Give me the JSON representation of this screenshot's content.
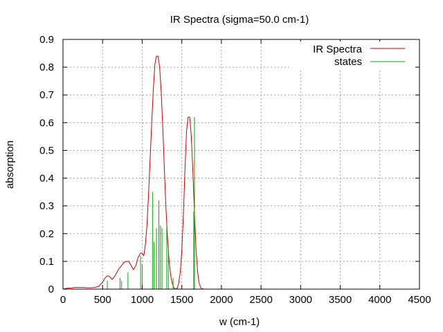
{
  "chart_data": {
    "type": "line",
    "title": "IR Spectra (sigma=50.0 cm-1)",
    "xlabel": "w (cm-1)",
    "ylabel": "absorption",
    "xlim": [
      0,
      4500
    ],
    "ylim": [
      0,
      0.9
    ],
    "x_ticks": [
      0,
      500,
      1000,
      1500,
      2000,
      2500,
      3000,
      3500,
      4000,
      4500
    ],
    "x_tick_labels": [
      "0",
      "500",
      "1000",
      "1500",
      "2000",
      "2500",
      "3000",
      "3500",
      "4000",
      "4500"
    ],
    "y_ticks": [
      0,
      0.1,
      0.2,
      0.3,
      0.4,
      0.5,
      0.6,
      0.7,
      0.8,
      0.9
    ],
    "y_tick_labels": [
      "0",
      "0.1",
      "0.2",
      "0.3",
      "0.4",
      "0.5",
      "0.6",
      "0.7",
      "0.8",
      "0.9"
    ],
    "grid": true,
    "legend_position": "top-right",
    "series": [
      {
        "name": "IR Spectra",
        "style": "line",
        "color": "#cc0000",
        "x": [
          0,
          50,
          100,
          150,
          200,
          250,
          300,
          350,
          400,
          450,
          500,
          530,
          560,
          590,
          620,
          650,
          680,
          710,
          740,
          770,
          800,
          830,
          860,
          890,
          920,
          950,
          980,
          1000,
          1020,
          1040,
          1060,
          1080,
          1100,
          1120,
          1140,
          1160,
          1180,
          1200,
          1220,
          1240,
          1260,
          1280,
          1300,
          1320,
          1340,
          1360,
          1380,
          1400,
          1420,
          1440,
          1460,
          1480,
          1500,
          1520,
          1540,
          1560,
          1580,
          1600,
          1620,
          1640,
          1660,
          1680,
          1700,
          1720,
          1740,
          1760,
          1780,
          1800,
          1820,
          1850,
          1900,
          2000,
          2500,
          3000,
          3500,
          4000,
          4500
        ],
        "y": [
          0.0,
          0.003,
          0.004,
          0.006,
          0.006,
          0.006,
          0.005,
          0.005,
          0.006,
          0.01,
          0.025,
          0.04,
          0.048,
          0.045,
          0.035,
          0.045,
          0.06,
          0.075,
          0.085,
          0.097,
          0.1,
          0.1,
          0.085,
          0.07,
          0.085,
          0.115,
          0.13,
          0.13,
          0.12,
          0.16,
          0.23,
          0.34,
          0.47,
          0.6,
          0.72,
          0.81,
          0.84,
          0.84,
          0.8,
          0.71,
          0.58,
          0.43,
          0.29,
          0.18,
          0.1,
          0.05,
          0.02,
          0.005,
          0.0,
          0.002,
          0.02,
          0.06,
          0.14,
          0.27,
          0.43,
          0.57,
          0.62,
          0.62,
          0.55,
          0.42,
          0.27,
          0.14,
          0.06,
          0.02,
          0.005,
          0.001,
          0.0,
          0.0,
          0.0,
          0.0,
          0.0,
          0.0,
          0.0,
          0.0,
          0.0,
          0.0,
          0.0
        ]
      },
      {
        "name": "states",
        "style": "impulses",
        "color": "#00aa00",
        "x": [
          560,
          720,
          740,
          820,
          980,
          1000,
          1130,
          1150,
          1180,
          1210,
          1230,
          1250,
          1310,
          1330,
          1390,
          1650,
          1660
        ],
        "y": [
          0.03,
          0.04,
          0.03,
          0.06,
          0.12,
          0.09,
          0.35,
          0.17,
          0.22,
          0.32,
          0.23,
          0.22,
          0.23,
          0.16,
          0.04,
          0.28,
          0.62
        ]
      }
    ]
  }
}
